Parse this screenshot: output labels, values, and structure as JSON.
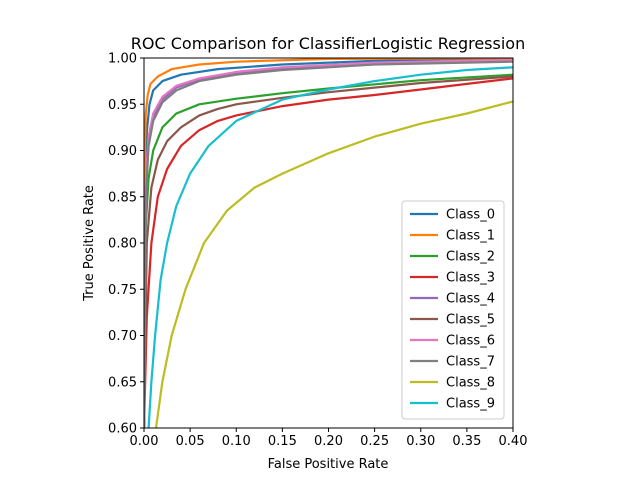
{
  "chart_data": {
    "type": "line",
    "title": "ROC Comparison for ClassifierLogistic Regression",
    "xlabel": "False Positive Rate",
    "ylabel": "True Positive Rate",
    "xlim": [
      0.0,
      0.4
    ],
    "ylim": [
      0.6,
      1.0
    ],
    "xticks": [
      "0.00",
      "0.05",
      "0.10",
      "0.15",
      "0.20",
      "0.25",
      "0.30",
      "0.35",
      "0.40"
    ],
    "yticks": [
      "0.60",
      "0.65",
      "0.70",
      "0.75",
      "0.80",
      "0.85",
      "0.90",
      "0.95",
      "1.00"
    ],
    "legend_position": "lower-right",
    "grid": false,
    "series": [
      {
        "name": "Class_0",
        "color": "#1f77b4",
        "points": [
          [
            0,
            0.6
          ],
          [
            0.0015,
            0.86
          ],
          [
            0.003,
            0.92
          ],
          [
            0.006,
            0.95
          ],
          [
            0.01,
            0.965
          ],
          [
            0.02,
            0.975
          ],
          [
            0.04,
            0.982
          ],
          [
            0.08,
            0.988
          ],
          [
            0.15,
            0.993
          ],
          [
            0.25,
            0.997
          ],
          [
            0.4,
            0.999
          ]
        ]
      },
      {
        "name": "Class_1",
        "color": "#ff7f0e",
        "points": [
          [
            0,
            0.6
          ],
          [
            0.001,
            0.9
          ],
          [
            0.002,
            0.94
          ],
          [
            0.004,
            0.96
          ],
          [
            0.007,
            0.972
          ],
          [
            0.015,
            0.98
          ],
          [
            0.03,
            0.988
          ],
          [
            0.06,
            0.993
          ],
          [
            0.1,
            0.996
          ],
          [
            0.2,
            0.999
          ],
          [
            0.4,
            1.0
          ]
        ]
      },
      {
        "name": "Class_2",
        "color": "#2ca02c",
        "points": [
          [
            0,
            0.6
          ],
          [
            0.002,
            0.82
          ],
          [
            0.005,
            0.87
          ],
          [
            0.01,
            0.9
          ],
          [
            0.02,
            0.925
          ],
          [
            0.035,
            0.94
          ],
          [
            0.06,
            0.95
          ],
          [
            0.1,
            0.956
          ],
          [
            0.15,
            0.962
          ],
          [
            0.2,
            0.967
          ],
          [
            0.3,
            0.976
          ],
          [
            0.4,
            0.982
          ]
        ]
      },
      {
        "name": "Class_3",
        "color": "#d62728",
        "points": [
          [
            0,
            0.6
          ],
          [
            0.003,
            0.72
          ],
          [
            0.008,
            0.8
          ],
          [
            0.015,
            0.85
          ],
          [
            0.025,
            0.88
          ],
          [
            0.04,
            0.905
          ],
          [
            0.06,
            0.922
          ],
          [
            0.08,
            0.932
          ],
          [
            0.1,
            0.938
          ],
          [
            0.15,
            0.948
          ],
          [
            0.2,
            0.955
          ],
          [
            0.25,
            0.96
          ],
          [
            0.3,
            0.966
          ],
          [
            0.35,
            0.972
          ],
          [
            0.4,
            0.978
          ]
        ]
      },
      {
        "name": "Class_4",
        "color": "#9467bd",
        "points": [
          [
            0,
            0.6
          ],
          [
            0.002,
            0.86
          ],
          [
            0.005,
            0.91
          ],
          [
            0.01,
            0.935
          ],
          [
            0.02,
            0.955
          ],
          [
            0.035,
            0.968
          ],
          [
            0.06,
            0.977
          ],
          [
            0.1,
            0.984
          ],
          [
            0.15,
            0.989
          ],
          [
            0.25,
            0.994
          ],
          [
            0.4,
            0.997
          ]
        ]
      },
      {
        "name": "Class_5",
        "color": "#8c564b",
        "points": [
          [
            0,
            0.6
          ],
          [
            0.003,
            0.8
          ],
          [
            0.008,
            0.86
          ],
          [
            0.015,
            0.89
          ],
          [
            0.025,
            0.91
          ],
          [
            0.04,
            0.925
          ],
          [
            0.06,
            0.938
          ],
          [
            0.08,
            0.945
          ],
          [
            0.1,
            0.95
          ],
          [
            0.15,
            0.957
          ],
          [
            0.2,
            0.963
          ],
          [
            0.3,
            0.973
          ],
          [
            0.4,
            0.98
          ]
        ]
      },
      {
        "name": "Class_6",
        "color": "#e377c2",
        "points": [
          [
            0,
            0.6
          ],
          [
            0.002,
            0.87
          ],
          [
            0.005,
            0.915
          ],
          [
            0.01,
            0.94
          ],
          [
            0.02,
            0.958
          ],
          [
            0.035,
            0.97
          ],
          [
            0.06,
            0.978
          ],
          [
            0.1,
            0.985
          ],
          [
            0.15,
            0.99
          ],
          [
            0.25,
            0.995
          ],
          [
            0.4,
            0.998
          ]
        ]
      },
      {
        "name": "Class_7",
        "color": "#7f7f7f",
        "points": [
          [
            0,
            0.6
          ],
          [
            0.002,
            0.85
          ],
          [
            0.005,
            0.905
          ],
          [
            0.01,
            0.932
          ],
          [
            0.02,
            0.952
          ],
          [
            0.035,
            0.965
          ],
          [
            0.06,
            0.975
          ],
          [
            0.1,
            0.982
          ],
          [
            0.15,
            0.987
          ],
          [
            0.25,
            0.993
          ],
          [
            0.4,
            0.996
          ]
        ]
      },
      {
        "name": "Class_8",
        "color": "#bcbd22",
        "points": [
          [
            0.013,
            0.6
          ],
          [
            0.02,
            0.65
          ],
          [
            0.03,
            0.7
          ],
          [
            0.045,
            0.75
          ],
          [
            0.065,
            0.8
          ],
          [
            0.09,
            0.835
          ],
          [
            0.12,
            0.86
          ],
          [
            0.15,
            0.875
          ],
          [
            0.2,
            0.897
          ],
          [
            0.25,
            0.915
          ],
          [
            0.3,
            0.929
          ],
          [
            0.35,
            0.94
          ],
          [
            0.4,
            0.953
          ]
        ]
      },
      {
        "name": "Class_9",
        "color": "#17becf",
        "points": [
          [
            0.005,
            0.6
          ],
          [
            0.008,
            0.65
          ],
          [
            0.012,
            0.7
          ],
          [
            0.018,
            0.76
          ],
          [
            0.025,
            0.8
          ],
          [
            0.035,
            0.84
          ],
          [
            0.05,
            0.875
          ],
          [
            0.07,
            0.905
          ],
          [
            0.1,
            0.932
          ],
          [
            0.15,
            0.955
          ],
          [
            0.2,
            0.966
          ],
          [
            0.25,
            0.975
          ],
          [
            0.3,
            0.982
          ],
          [
            0.35,
            0.987
          ],
          [
            0.4,
            0.99
          ]
        ]
      }
    ]
  }
}
